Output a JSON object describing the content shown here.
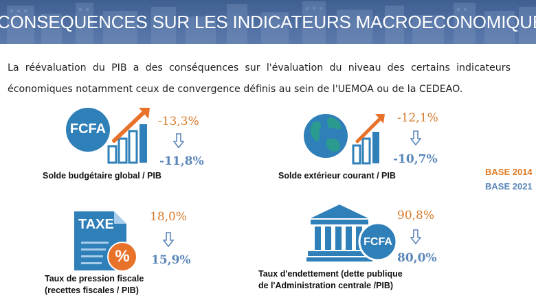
{
  "header": {
    "title": "CONSEQUENCES SUR LES INDICATEURS MACROECONOMIQUES"
  },
  "intro": {
    "text": "La réévaluation du PIB a des conséquences sur l'évaluation du niveau des certains indicateurs économiques notamment ceux de convergence définis au sein de l'UEMOA ou de la CEDEAO."
  },
  "indicators": [
    {
      "label": "Solde budgétaire global / PIB",
      "icon_text": "FCFA",
      "value_base_2014": "-13,3%",
      "value_base_2021": "-11,8%"
    },
    {
      "label": "Solde extérieur courant / PIB",
      "value_base_2014": "-12,1%",
      "value_base_2021": "-10,7%"
    },
    {
      "label_line1": "Taux de pression fiscale",
      "label_line2": "(recettes fiscales / PIB)",
      "icon_text": "TAXE",
      "icon_symbol": "%",
      "value_base_2014": "18,0%",
      "value_base_2021": "15,9%"
    },
    {
      "label_line1": "Taux d'endettement (dette publique",
      "label_line2": "de l'Administration centrale /PIB)",
      "icon_text": "FCFA",
      "value_base_2014": "90,8%",
      "value_base_2021": "80,0%"
    }
  ],
  "legend": {
    "base_2014": "BASE 2014",
    "base_2021": "BASE 2021"
  },
  "colors": {
    "banner": "#4a6a9e",
    "old_value": "#d97a2b",
    "new_value": "#5a86b8",
    "icon_blue": "#2f7fb8",
    "arrow_orange": "#e8722a"
  }
}
